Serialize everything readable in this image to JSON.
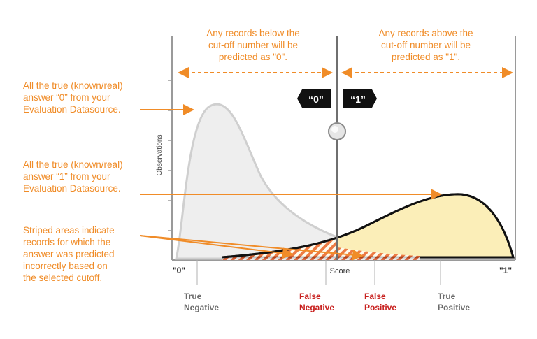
{
  "colors": {
    "annotation": "#f08c28",
    "negative_fill": "#eeeeee",
    "negative_stroke": "#cfcfcf",
    "positive_fill": "#fbeeb8",
    "positive_stroke": "#111111",
    "error_label": "#c8201e",
    "correct_label": "#6b6b6b"
  },
  "top_notes": {
    "below": [
      "Any records below the",
      "cut-off number will be",
      "predicted as \"0\"."
    ],
    "above": [
      "Any records above the",
      "cut-off number will be",
      "predicted as \"1\"."
    ]
  },
  "side_notes": {
    "true_zero": [
      "All the true (known/real)",
      "answer “0” from your",
      "Evaluation Datasource."
    ],
    "true_one": [
      "All the true (known/real)",
      "answer “1” from your",
      "Evaluation Datasource."
    ],
    "striped": [
      "Striped areas indicate",
      "records for which the",
      "answer was predicted",
      "incorrectly based on",
      "the selected cutoff."
    ]
  },
  "cutoff_tags": {
    "zero": "“0”",
    "one": "“1”"
  },
  "axes": {
    "y_label": "Observations",
    "x_label": "Score",
    "x_min_label": "\"0\"",
    "x_max_label": "\"1\""
  },
  "outcome_labels": {
    "true_negative": [
      "True",
      "Negative"
    ],
    "false_negative": [
      "False",
      "Negative"
    ],
    "false_positive": [
      "False",
      "Positive"
    ],
    "true_positive": [
      "True",
      "Positive"
    ]
  }
}
